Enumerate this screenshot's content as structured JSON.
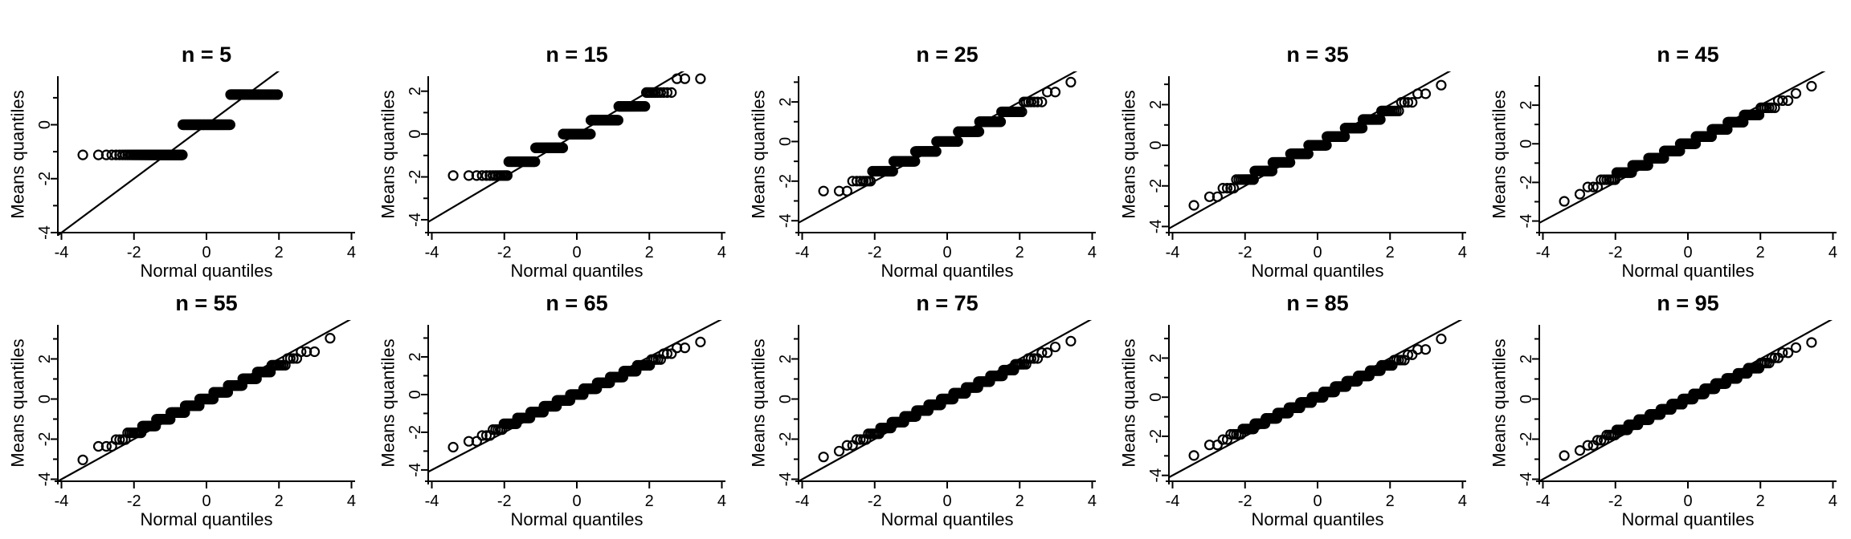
{
  "chart_data": [
    {
      "type": "scatter",
      "title": "n = 5",
      "xlabel": "Normal quantiles",
      "ylabel": "Means quantiles",
      "xlim": [
        -4.1,
        4.1
      ],
      "ylim": [
        -4.0,
        1.8
      ],
      "xticks": [
        -4,
        -2,
        0,
        2,
        4
      ],
      "yticks": [
        -4,
        -2,
        0
      ],
      "n": 5
    },
    {
      "type": "scatter",
      "title": "n = 15",
      "xlabel": "Normal quantiles",
      "ylabel": "Means quantiles",
      "xlim": [
        -4.1,
        4.1
      ],
      "ylim": [
        -4.6,
        2.7
      ],
      "xticks": [
        -4,
        -2,
        0,
        2,
        4
      ],
      "yticks": [
        -4,
        -2,
        0,
        2
      ],
      "n": 15
    },
    {
      "type": "scatter",
      "title": "n = 25",
      "xlabel": "Normal quantiles",
      "ylabel": "Means quantiles",
      "xlim": [
        -4.1,
        4.1
      ],
      "ylim": [
        -4.6,
        3.3
      ],
      "xticks": [
        -4,
        -2,
        0,
        2,
        4
      ],
      "yticks": [
        -4,
        -2,
        0,
        2
      ],
      "n": 25
    },
    {
      "type": "scatter",
      "title": "n = 35",
      "xlabel": "Normal quantiles",
      "ylabel": "Means quantiles",
      "xlim": [
        -4.1,
        4.1
      ],
      "ylim": [
        -4.3,
        3.4
      ],
      "xticks": [
        -4,
        -2,
        0,
        2,
        4
      ],
      "yticks": [
        -4,
        -2,
        0,
        2
      ],
      "n": 35
    },
    {
      "type": "scatter",
      "title": "n = 45",
      "xlabel": "Normal quantiles",
      "ylabel": "Means quantiles",
      "xlim": [
        -4.1,
        4.1
      ],
      "ylim": [
        -4.6,
        3.5
      ],
      "xticks": [
        -4,
        -2,
        0,
        2,
        4
      ],
      "yticks": [
        -4,
        -2,
        0,
        2
      ],
      "n": 45
    },
    {
      "type": "scatter",
      "title": "n = 55",
      "xlabel": "Normal quantiles",
      "ylabel": "Means quantiles",
      "xlim": [
        -4.1,
        4.1
      ],
      "ylim": [
        -4.1,
        3.7
      ],
      "xticks": [
        -4,
        -2,
        0,
        2,
        4
      ],
      "yticks": [
        -4,
        -2,
        0,
        2
      ],
      "n": 55
    },
    {
      "type": "scatter",
      "title": "n = 65",
      "xlabel": "Normal quantiles",
      "ylabel": "Means quantiles",
      "xlim": [
        -4.1,
        4.1
      ],
      "ylim": [
        -4.6,
        3.7
      ],
      "xticks": [
        -4,
        -2,
        0,
        2,
        4
      ],
      "yticks": [
        -4,
        -2,
        0,
        2
      ],
      "n": 65
    },
    {
      "type": "scatter",
      "title": "n = 75",
      "xlabel": "Normal quantiles",
      "ylabel": "Means quantiles",
      "xlim": [
        -4.1,
        4.1
      ],
      "ylim": [
        -4.1,
        3.7
      ],
      "xticks": [
        -4,
        -2,
        0,
        2,
        4
      ],
      "yticks": [
        -4,
        -2,
        0,
        2
      ],
      "n": 75
    },
    {
      "type": "scatter",
      "title": "n = 85",
      "xlabel": "Normal quantiles",
      "ylabel": "Means quantiles",
      "xlim": [
        -4.1,
        4.1
      ],
      "ylim": [
        -4.3,
        3.7
      ],
      "xticks": [
        -4,
        -2,
        0,
        2,
        4
      ],
      "yticks": [
        -4,
        -2,
        0,
        2
      ],
      "n": 85
    },
    {
      "type": "scatter",
      "title": "n = 95",
      "xlabel": "Normal quantiles",
      "ylabel": "Means quantiles",
      "xlim": [
        -4.1,
        4.1
      ],
      "ylim": [
        -4.1,
        3.7
      ],
      "xticks": [
        -4,
        -2,
        0,
        2,
        4
      ],
      "yticks": [
        -4,
        -2,
        0,
        2
      ],
      "n": 95
    }
  ]
}
